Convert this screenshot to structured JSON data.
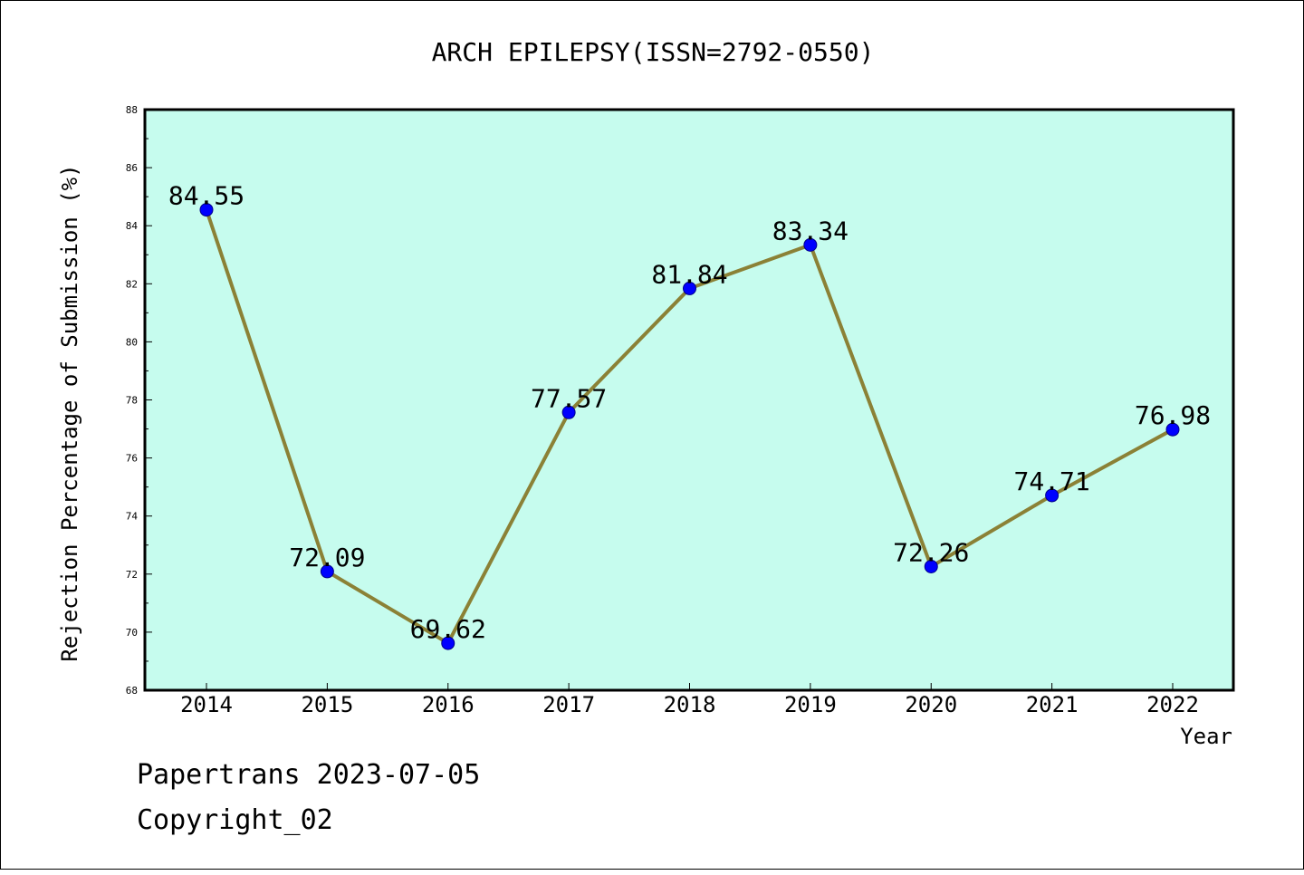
{
  "chart_data": {
    "type": "line",
    "title": "ARCH EPILEPSY(ISSN=2792-0550)",
    "xlabel": "Year",
    "ylabel": "Rejection Percentage of Submission (%)",
    "categories": [
      "2014",
      "2015",
      "2016",
      "2017",
      "2018",
      "2019",
      "2020",
      "2021",
      "2022"
    ],
    "values": [
      84.55,
      72.09,
      69.62,
      77.57,
      81.84,
      83.34,
      72.26,
      74.71,
      76.98
    ],
    "data_labels": [
      "84.55",
      "72.09",
      "69.62",
      "77.57",
      "81.84",
      "83.34",
      "72.26",
      "74.71",
      "76.98"
    ],
    "ylim": [
      68,
      88
    ],
    "yticks": [
      "68",
      "70",
      "72",
      "74",
      "76",
      "78",
      "80",
      "82",
      "84",
      "86",
      "88"
    ],
    "grid": false,
    "colors": {
      "plot_background": "#c6fcee",
      "line": "#8b8136",
      "marker": "#0000ff",
      "marker_edge": "#00008b"
    }
  },
  "footer": {
    "line1": "Papertrans 2023-07-05",
    "line2": "Copyright_02"
  }
}
